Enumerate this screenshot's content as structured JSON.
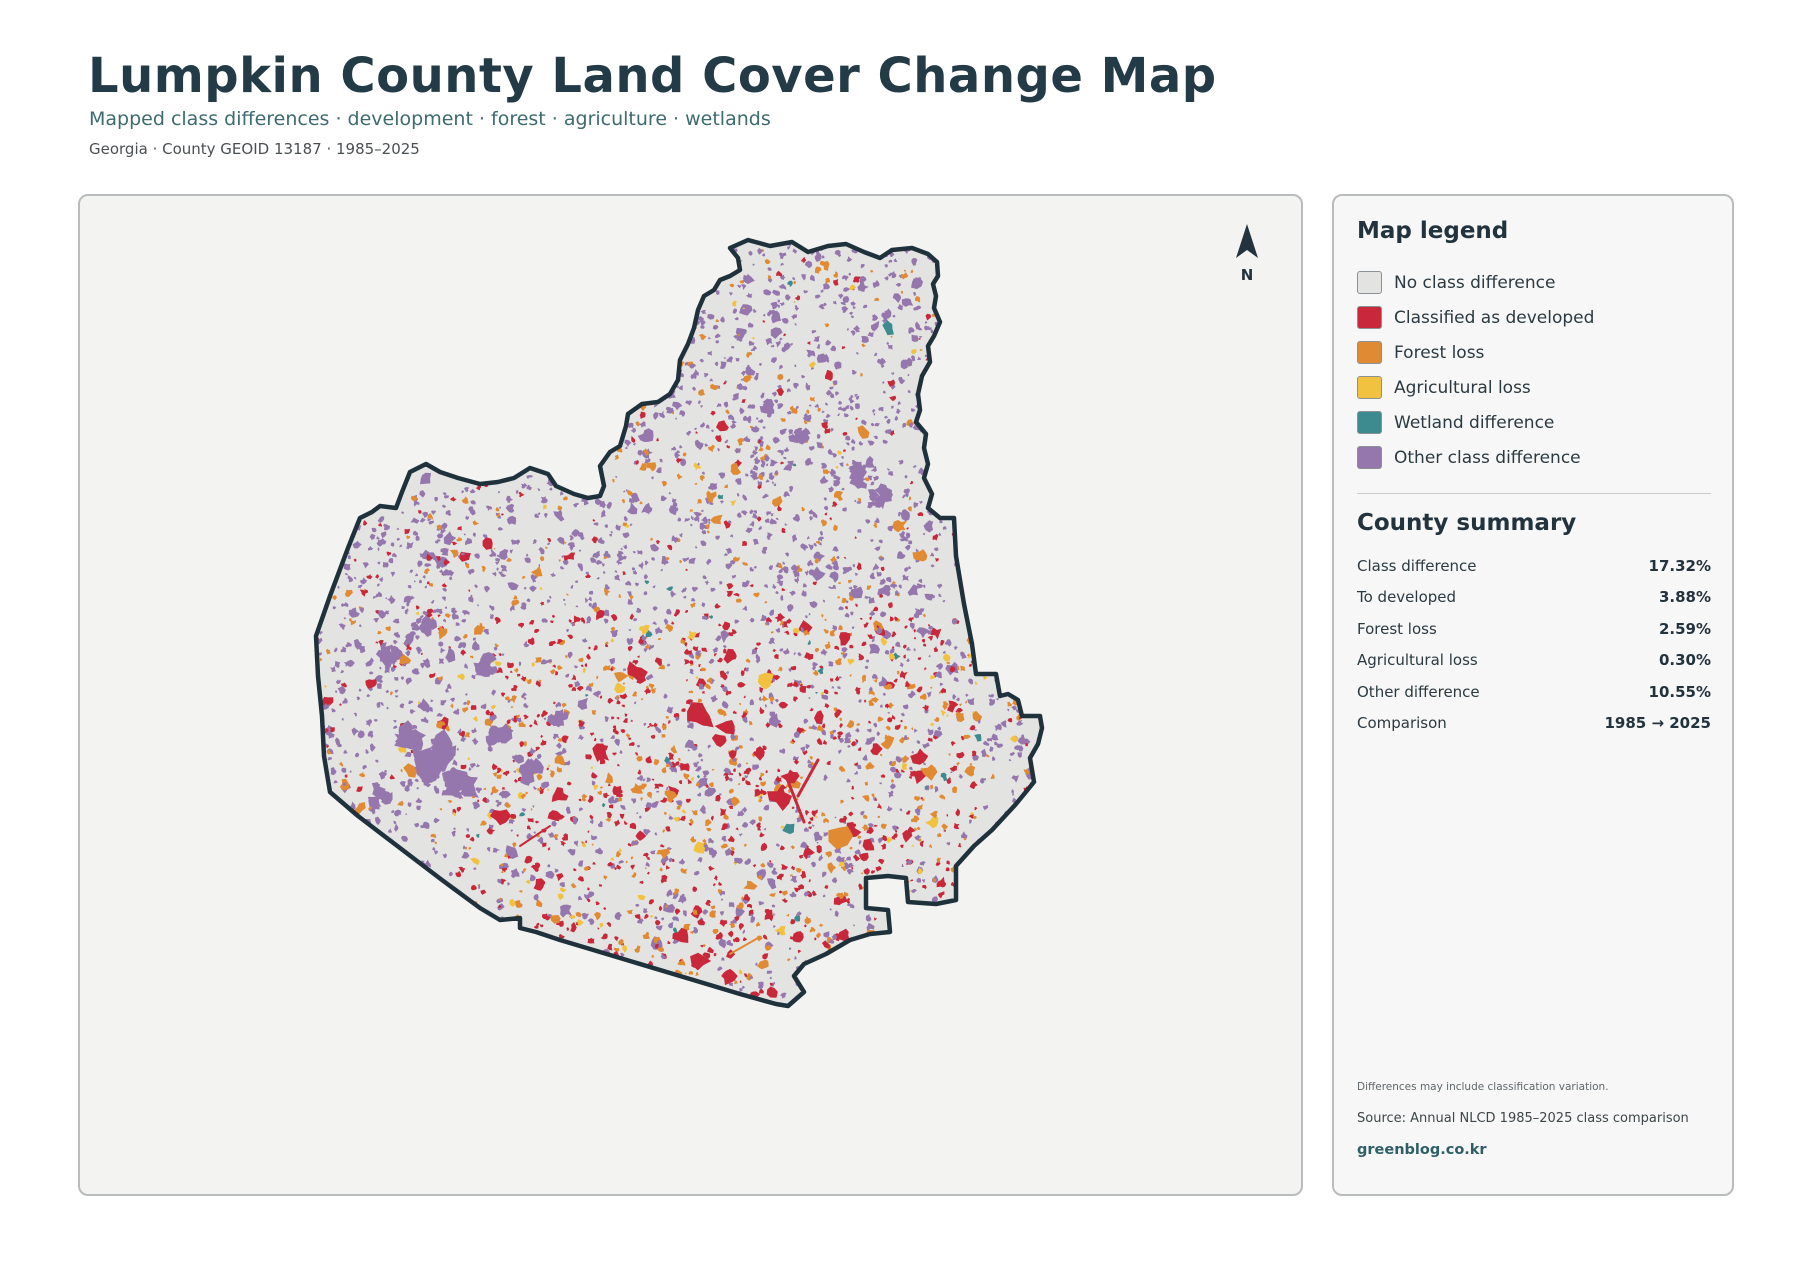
{
  "header": {
    "title": "Lumpkin County Land Cover Change Map",
    "subtitle": "Mapped class differences · development · forest · agriculture · wetlands",
    "meta": "Georgia · County GEOID 13187 · 1985–2025"
  },
  "map": {
    "north_label": "N",
    "colors": {
      "no_change": "#e3e4e1",
      "developed": "#c8283a",
      "forest_loss": "#e08a34",
      "agricultural_loss": "#f0c240",
      "wetland": "#3d8a8f",
      "other": "#9577ad",
      "boundary": "#1f323c"
    }
  },
  "legend": {
    "heading": "Map legend",
    "items": [
      {
        "label": "No class difference",
        "color": "#e3e4e1"
      },
      {
        "label": "Classified as developed",
        "color": "#c8283a"
      },
      {
        "label": "Forest loss",
        "color": "#e08a34"
      },
      {
        "label": "Agricultural loss",
        "color": "#f0c240"
      },
      {
        "label": "Wetland difference",
        "color": "#3d8a8f"
      },
      {
        "label": "Other class difference",
        "color": "#9577ad"
      }
    ]
  },
  "summary": {
    "heading": "County summary",
    "rows": [
      {
        "label": "Class difference",
        "value": "17.32%"
      },
      {
        "label": "To developed",
        "value": "3.88%"
      },
      {
        "label": "Forest loss",
        "value": "2.59%"
      },
      {
        "label": "Agricultural loss",
        "value": "0.30%"
      },
      {
        "label": "Other difference",
        "value": "10.55%"
      },
      {
        "label": "Comparison",
        "value": "1985 → 2025"
      }
    ]
  },
  "footer": {
    "note": "Differences may include classification variation.",
    "source": "Source: Annual NLCD 1985–2025 class comparison",
    "brand": "greenblog.co.kr"
  }
}
